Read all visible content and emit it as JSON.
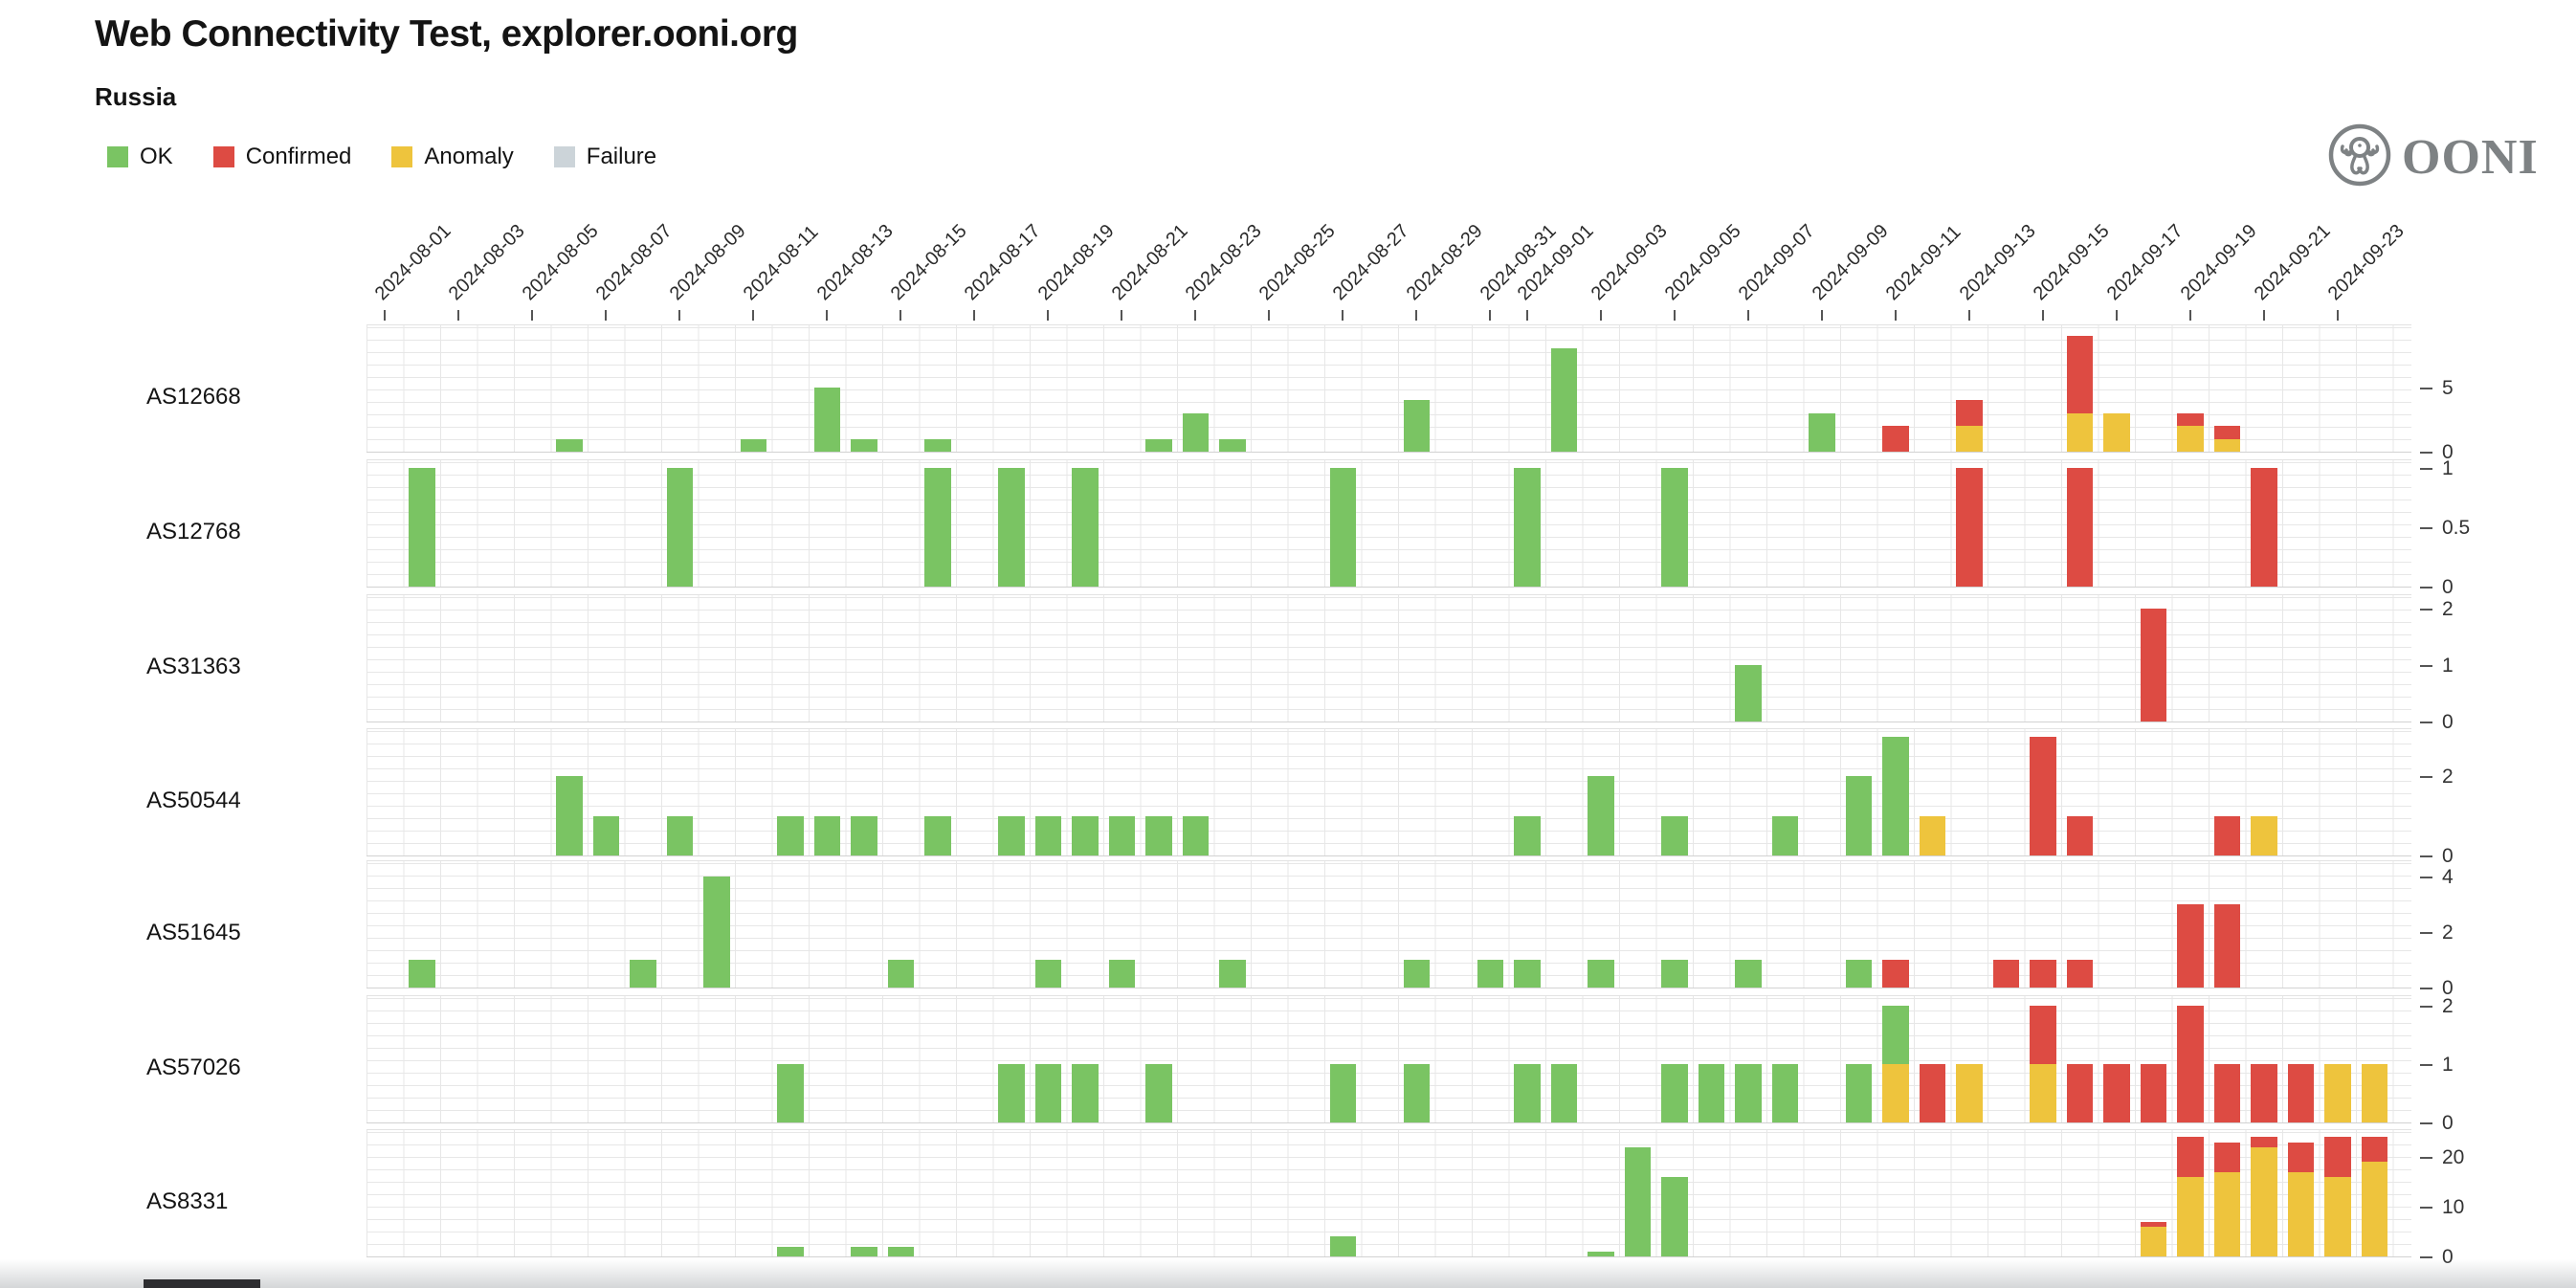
{
  "header": {
    "title": "Web Connectivity Test, explorer.ooni.org",
    "subtitle": "Russia"
  },
  "logo": {
    "text": "OONI"
  },
  "legend": [
    {
      "key": "ok",
      "label": "OK",
      "color": "#7ac463"
    },
    {
      "key": "confirmed",
      "label": "Confirmed",
      "color": "#dd4b43"
    },
    {
      "key": "anomaly",
      "label": "Anomaly",
      "color": "#eec43d"
    },
    {
      "key": "failure",
      "label": "Failure",
      "color": "#ccd4d9"
    }
  ],
  "chart_data": {
    "type": "bar",
    "stacked": true,
    "stack_order_bottom_to_top": [
      "anomaly",
      "confirmed",
      "ok"
    ],
    "grid": true,
    "legend_position": "top-left",
    "x_start_date": "2024-08-01",
    "x_end_date": "2024-09-24",
    "x_tick_labels": [
      "2024-08-01",
      "2024-08-03",
      "2024-08-05",
      "2024-08-07",
      "2024-08-09",
      "2024-08-11",
      "2024-08-13",
      "2024-08-15",
      "2024-08-17",
      "2024-08-19",
      "2024-08-21",
      "2024-08-23",
      "2024-08-25",
      "2024-08-27",
      "2024-08-29",
      "2024-08-31",
      "2024-09-01",
      "2024-09-03",
      "2024-09-05",
      "2024-09-07",
      "2024-09-09",
      "2024-09-11",
      "2024-09-13",
      "2024-09-15",
      "2024-09-17",
      "2024-09-19",
      "2024-09-21",
      "2024-09-23"
    ],
    "series_colors": {
      "ok": "#7ac463",
      "confirmed": "#dd4b43",
      "anomaly": "#eec43d",
      "failure": "#ccd4d9"
    },
    "rows": [
      {
        "label": "AS12668",
        "ymax": 9.93,
        "yticks": [
          5,
          0
        ],
        "bars": [
          {
            "date": "2024-08-06",
            "ok": 1
          },
          {
            "date": "2024-08-11",
            "ok": 1
          },
          {
            "date": "2024-08-13",
            "ok": 5
          },
          {
            "date": "2024-08-14",
            "ok": 1
          },
          {
            "date": "2024-08-16",
            "ok": 1
          },
          {
            "date": "2024-08-22",
            "ok": 1
          },
          {
            "date": "2024-08-23",
            "ok": 3
          },
          {
            "date": "2024-08-24",
            "ok": 1
          },
          {
            "date": "2024-08-29",
            "ok": 4
          },
          {
            "date": "2024-09-02",
            "ok": 8
          },
          {
            "date": "2024-09-09",
            "ok": 3
          },
          {
            "date": "2024-09-11",
            "confirmed": 2
          },
          {
            "date": "2024-09-13",
            "anomaly": 2,
            "confirmed": 2
          },
          {
            "date": "2024-09-16",
            "anomaly": 3,
            "confirmed": 6
          },
          {
            "date": "2024-09-17",
            "anomaly": 3
          },
          {
            "date": "2024-09-19",
            "anomaly": 2,
            "confirmed": 1
          },
          {
            "date": "2024-09-20",
            "anomaly": 1,
            "confirmed": 1
          }
        ]
      },
      {
        "label": "AS12768",
        "ymax": 1.08,
        "yticks": [
          1,
          0.5,
          0
        ],
        "bars": [
          {
            "date": "2024-08-02",
            "ok": 1
          },
          {
            "date": "2024-08-09",
            "ok": 1
          },
          {
            "date": "2024-08-16",
            "ok": 1
          },
          {
            "date": "2024-08-18",
            "ok": 1
          },
          {
            "date": "2024-08-20",
            "ok": 1
          },
          {
            "date": "2024-08-27",
            "ok": 1
          },
          {
            "date": "2024-09-01",
            "ok": 1
          },
          {
            "date": "2024-09-05",
            "ok": 1
          },
          {
            "date": "2024-09-13",
            "confirmed": 1
          },
          {
            "date": "2024-09-16",
            "confirmed": 1
          },
          {
            "date": "2024-09-21",
            "confirmed": 1
          }
        ]
      },
      {
        "label": "AS31363",
        "ymax": 2.27,
        "yticks": [
          2,
          1,
          0
        ],
        "bars": [
          {
            "date": "2024-09-07",
            "ok": 1
          },
          {
            "date": "2024-09-18",
            "confirmed": 2
          }
        ]
      },
      {
        "label": "AS50544",
        "ymax": 3.23,
        "yticks": [
          2,
          0
        ],
        "bars": [
          {
            "date": "2024-08-06",
            "ok": 2
          },
          {
            "date": "2024-08-07",
            "ok": 1
          },
          {
            "date": "2024-08-09",
            "ok": 1
          },
          {
            "date": "2024-08-12",
            "ok": 1
          },
          {
            "date": "2024-08-13",
            "ok": 1
          },
          {
            "date": "2024-08-14",
            "ok": 1
          },
          {
            "date": "2024-08-16",
            "ok": 1
          },
          {
            "date": "2024-08-18",
            "ok": 1
          },
          {
            "date": "2024-08-19",
            "ok": 1
          },
          {
            "date": "2024-08-20",
            "ok": 1
          },
          {
            "date": "2024-08-21",
            "ok": 1
          },
          {
            "date": "2024-08-22",
            "ok": 1
          },
          {
            "date": "2024-08-23",
            "ok": 1
          },
          {
            "date": "2024-09-01",
            "ok": 1
          },
          {
            "date": "2024-09-03",
            "ok": 2
          },
          {
            "date": "2024-09-05",
            "ok": 1
          },
          {
            "date": "2024-09-08",
            "ok": 1
          },
          {
            "date": "2024-09-10",
            "ok": 2
          },
          {
            "date": "2024-09-11",
            "ok": 3
          },
          {
            "date": "2024-09-12",
            "anomaly": 1
          },
          {
            "date": "2024-09-15",
            "confirmed": 3
          },
          {
            "date": "2024-09-16",
            "confirmed": 1
          },
          {
            "date": "2024-09-20",
            "confirmed": 1
          },
          {
            "date": "2024-09-21",
            "anomaly": 1
          }
        ]
      },
      {
        "label": "AS51645",
        "ymax": 4.62,
        "yticks": [
          4,
          2,
          0
        ],
        "bars": [
          {
            "date": "2024-08-02",
            "ok": 1
          },
          {
            "date": "2024-08-08",
            "ok": 1
          },
          {
            "date": "2024-08-10",
            "ok": 4
          },
          {
            "date": "2024-08-15",
            "ok": 1
          },
          {
            "date": "2024-08-19",
            "ok": 1
          },
          {
            "date": "2024-08-21",
            "ok": 1
          },
          {
            "date": "2024-08-24",
            "ok": 1
          },
          {
            "date": "2024-08-29",
            "ok": 1
          },
          {
            "date": "2024-08-31",
            "ok": 1
          },
          {
            "date": "2024-09-01",
            "ok": 1
          },
          {
            "date": "2024-09-03",
            "ok": 1
          },
          {
            "date": "2024-09-05",
            "ok": 1
          },
          {
            "date": "2024-09-07",
            "ok": 1
          },
          {
            "date": "2024-09-10",
            "ok": 1
          },
          {
            "date": "2024-09-11",
            "confirmed": 1
          },
          {
            "date": "2024-09-14",
            "confirmed": 1
          },
          {
            "date": "2024-09-15",
            "confirmed": 1
          },
          {
            "date": "2024-09-16",
            "confirmed": 1
          },
          {
            "date": "2024-09-19",
            "confirmed": 3
          },
          {
            "date": "2024-09-20",
            "confirmed": 3
          }
        ]
      },
      {
        "label": "AS57026",
        "ymax": 2.2,
        "yticks": [
          2,
          1,
          0
        ],
        "bars": [
          {
            "date": "2024-08-12",
            "ok": 1
          },
          {
            "date": "2024-08-18",
            "ok": 1
          },
          {
            "date": "2024-08-19",
            "ok": 1
          },
          {
            "date": "2024-08-20",
            "ok": 1
          },
          {
            "date": "2024-08-22",
            "ok": 1
          },
          {
            "date": "2024-08-27",
            "ok": 1
          },
          {
            "date": "2024-08-29",
            "ok": 1
          },
          {
            "date": "2024-09-01",
            "ok": 1
          },
          {
            "date": "2024-09-02",
            "ok": 1
          },
          {
            "date": "2024-09-05",
            "ok": 1
          },
          {
            "date": "2024-09-06",
            "ok": 1
          },
          {
            "date": "2024-09-07",
            "ok": 1
          },
          {
            "date": "2024-09-08",
            "ok": 1
          },
          {
            "date": "2024-09-10",
            "ok": 1
          },
          {
            "date": "2024-09-11",
            "anomaly": 1,
            "ok": 1
          },
          {
            "date": "2024-09-12",
            "confirmed": 1
          },
          {
            "date": "2024-09-13",
            "anomaly": 1
          },
          {
            "date": "2024-09-15",
            "anomaly": 1,
            "confirmed": 1
          },
          {
            "date": "2024-09-16",
            "confirmed": 1
          },
          {
            "date": "2024-09-17",
            "confirmed": 1
          },
          {
            "date": "2024-09-18",
            "confirmed": 1
          },
          {
            "date": "2024-09-19",
            "confirmed": 2
          },
          {
            "date": "2024-09-20",
            "confirmed": 1
          },
          {
            "date": "2024-09-21",
            "confirmed": 1
          },
          {
            "date": "2024-09-22",
            "confirmed": 1
          },
          {
            "date": "2024-09-23",
            "anomaly": 1
          },
          {
            "date": "2024-09-24",
            "anomaly": 1
          }
        ]
      },
      {
        "label": "AS8331",
        "ymax": 25.8,
        "yticks": [
          20,
          10,
          0
        ],
        "bars": [
          {
            "date": "2024-08-12",
            "ok": 2
          },
          {
            "date": "2024-08-14",
            "ok": 2
          },
          {
            "date": "2024-08-15",
            "ok": 2
          },
          {
            "date": "2024-08-27",
            "ok": 4
          },
          {
            "date": "2024-09-03",
            "ok": 1
          },
          {
            "date": "2024-09-04",
            "ok": 22
          },
          {
            "date": "2024-09-05",
            "ok": 16
          },
          {
            "date": "2024-09-18",
            "anomaly": 6,
            "confirmed": 1
          },
          {
            "date": "2024-09-19",
            "anomaly": 16,
            "confirmed": 8
          },
          {
            "date": "2024-09-20",
            "anomaly": 17,
            "confirmed": 6
          },
          {
            "date": "2024-09-21",
            "anomaly": 22,
            "confirmed": 2
          },
          {
            "date": "2024-09-22",
            "anomaly": 17,
            "confirmed": 6
          },
          {
            "date": "2024-09-23",
            "anomaly": 16,
            "confirmed": 8
          },
          {
            "date": "2024-09-24",
            "anomaly": 19,
            "confirmed": 5
          }
        ]
      }
    ]
  }
}
